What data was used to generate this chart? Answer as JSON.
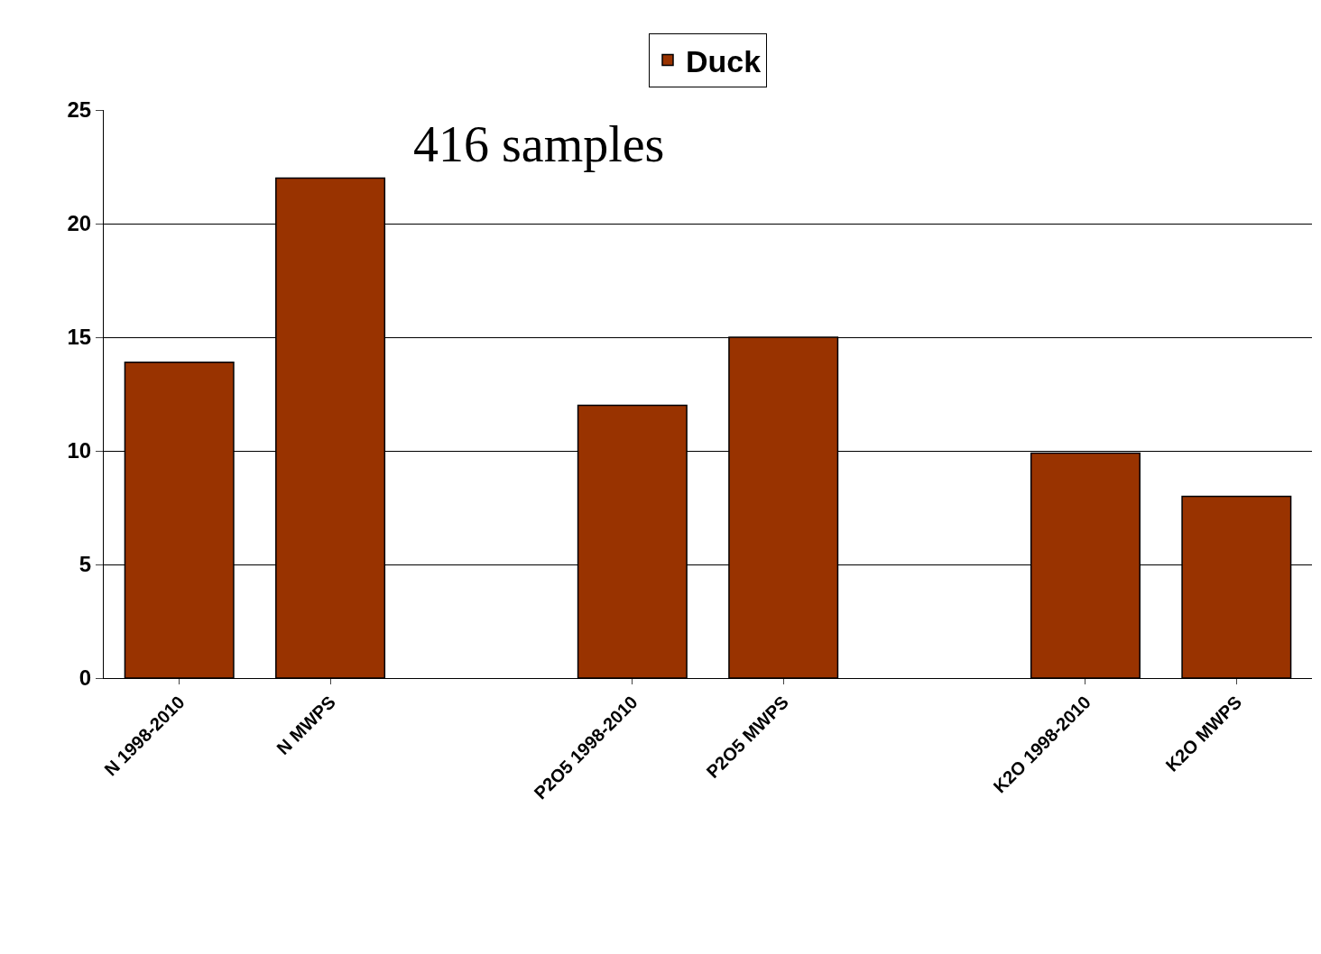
{
  "chart_data": {
    "type": "bar",
    "categories": [
      "N 1998-2010",
      "N MWPS",
      null,
      "P2O5 1998-2010",
      "P2O5 MWPS",
      null,
      "K2O 1998-2010",
      "K2O MWPS"
    ],
    "series": [
      {
        "name": "Duck",
        "color": "#993300",
        "values": [
          13.9,
          22,
          null,
          12,
          15,
          null,
          9.9,
          8
        ]
      }
    ],
    "ylim": [
      0,
      25
    ],
    "yticks": [
      0,
      5,
      10,
      15,
      20,
      25
    ],
    "grid": "y",
    "legend": "top",
    "annotations": [
      "416 samples"
    ]
  }
}
